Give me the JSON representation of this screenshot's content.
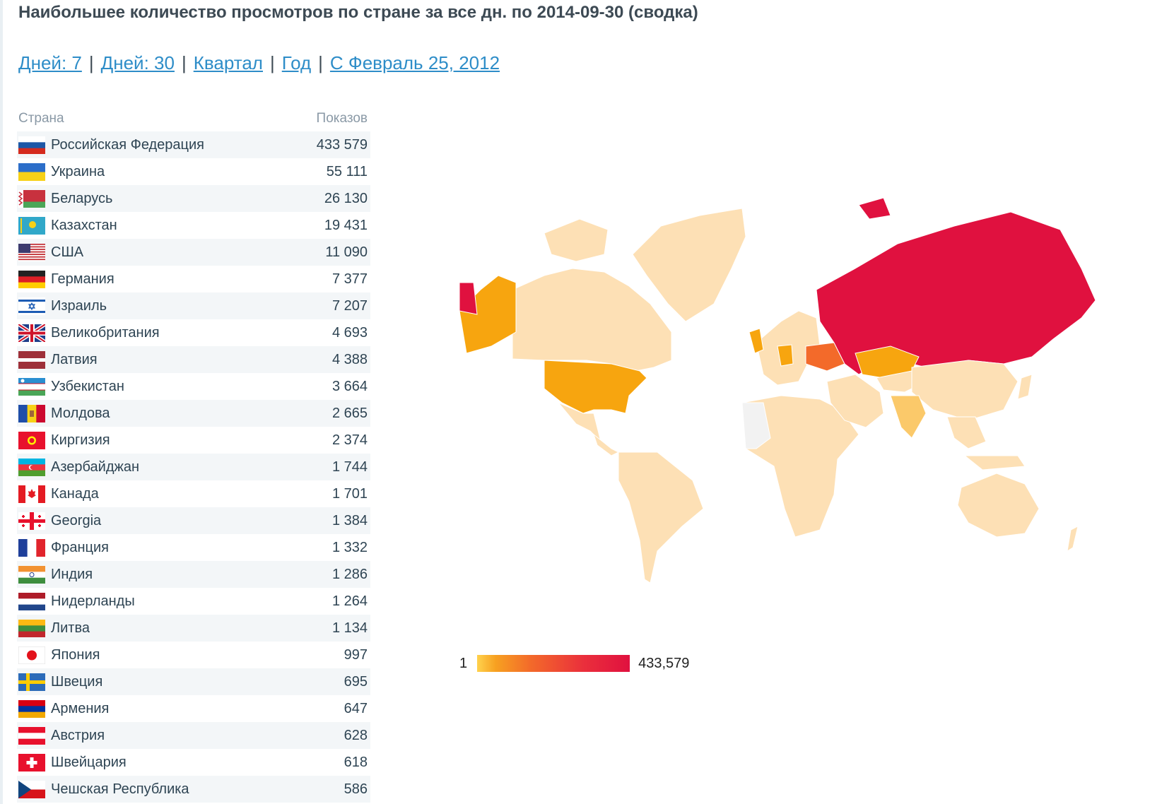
{
  "page_title": "Наибольшее количество просмотров по стране за все дн. по 2014-09-30 (сводка)",
  "periods": [
    {
      "label": "Дней: 7"
    },
    {
      "label": "Дней: 30"
    },
    {
      "label": "Квартал"
    },
    {
      "label": "Год"
    },
    {
      "label": "С Февраль 25, 2012"
    }
  ],
  "period_separator": "|",
  "table": {
    "col_country": "Страна",
    "col_views": "Показов",
    "rows": [
      {
        "country": "Российская Федерация",
        "views": "433 579",
        "flag": "russia-flag-icon"
      },
      {
        "country": "Украина",
        "views": "55 111",
        "flag": "ukraine-flag-icon"
      },
      {
        "country": "Беларусь",
        "views": "26 130",
        "flag": "belarus-flag-icon"
      },
      {
        "country": "Казахстан",
        "views": "19 431",
        "flag": "kazakhstan-flag-icon"
      },
      {
        "country": "США",
        "views": "11 090",
        "flag": "usa-flag-icon"
      },
      {
        "country": "Германия",
        "views": "7 377",
        "flag": "germany-flag-icon"
      },
      {
        "country": "Израиль",
        "views": "7 207",
        "flag": "israel-flag-icon"
      },
      {
        "country": "Великобритания",
        "views": "4 693",
        "flag": "uk-flag-icon"
      },
      {
        "country": "Латвия",
        "views": "4 388",
        "flag": "latvia-flag-icon"
      },
      {
        "country": "Узбекистан",
        "views": "3 664",
        "flag": "uzbekistan-flag-icon"
      },
      {
        "country": "Молдова",
        "views": "2 665",
        "flag": "moldova-flag-icon"
      },
      {
        "country": "Киргизия",
        "views": "2 374",
        "flag": "kyrgyzstan-flag-icon"
      },
      {
        "country": "Азербайджан",
        "views": "1 744",
        "flag": "azerbaijan-flag-icon"
      },
      {
        "country": "Канада",
        "views": "1 701",
        "flag": "canada-flag-icon"
      },
      {
        "country": "Georgia",
        "views": "1 384",
        "flag": "georgia-flag-icon"
      },
      {
        "country": "Франция",
        "views": "1 332",
        "flag": "france-flag-icon"
      },
      {
        "country": "Индия",
        "views": "1 286",
        "flag": "india-flag-icon"
      },
      {
        "country": "Нидерланды",
        "views": "1 264",
        "flag": "netherlands-flag-icon"
      },
      {
        "country": "Литва",
        "views": "1 134",
        "flag": "lithuania-flag-icon"
      },
      {
        "country": "Япония",
        "views": "997",
        "flag": "japan-flag-icon"
      },
      {
        "country": "Швеция",
        "views": "695",
        "flag": "sweden-flag-icon"
      },
      {
        "country": "Армения",
        "views": "647",
        "flag": "armenia-flag-icon"
      },
      {
        "country": "Австрия",
        "views": "628",
        "flag": "austria-flag-icon"
      },
      {
        "country": "Швейцария",
        "views": "618",
        "flag": "switzerland-flag-icon"
      },
      {
        "country": "Чешская Республика",
        "views": "586",
        "flag": "czech-flag-icon"
      }
    ]
  },
  "map": {
    "colors": {
      "top": "#e0113f",
      "high": "#f36a2a",
      "mid": "#f7a50f",
      "low": "#fbc96a",
      "minimal": "#fde0b5",
      "none": "#f2f2f2",
      "border": "#ffffff"
    }
  },
  "legend": {
    "min_label": "1",
    "max_label": "433,579"
  }
}
